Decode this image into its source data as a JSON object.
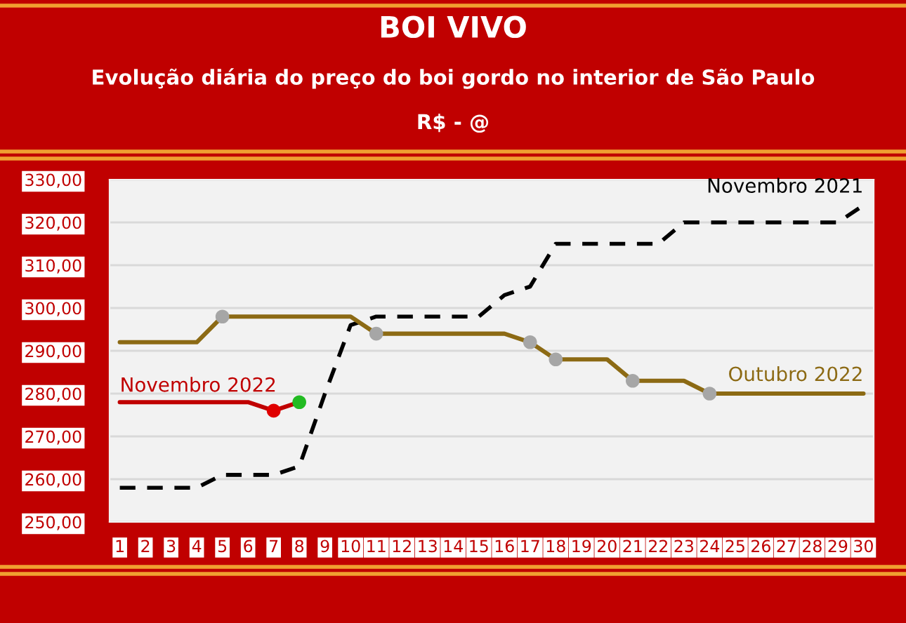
{
  "chart_data": {
    "type": "line",
    "title": "BOI VIVO",
    "subtitle": "Evolução diária do preço do boi gordo no interior de São Paulo",
    "annotations": [
      "R$ - @"
    ],
    "categories": [
      "1",
      "2",
      "3",
      "4",
      "5",
      "6",
      "7",
      "8",
      "9",
      "10",
      "11",
      "12",
      "13",
      "14",
      "15",
      "16",
      "17",
      "18",
      "19",
      "20",
      "21",
      "22",
      "23",
      "24",
      "25",
      "26",
      "27",
      "28",
      "29",
      "30"
    ],
    "series": [
      {
        "name": "Novembro 2021",
        "color": "#000000",
        "line_style": "dashed",
        "values": [
          258,
          258,
          258,
          258,
          261,
          261,
          261,
          263,
          280,
          296,
          298,
          298,
          298,
          298,
          298,
          303,
          305,
          315,
          315,
          315,
          315,
          315,
          320,
          320,
          320,
          320,
          320,
          320,
          320,
          324
        ]
      },
      {
        "name": "Outubro 2022",
        "color": "#8c6a14",
        "line_style": "solid",
        "values": [
          292,
          292,
          292,
          292,
          298,
          298,
          298,
          298,
          298,
          298,
          294,
          294,
          294,
          294,
          294,
          294,
          292,
          288,
          288,
          288,
          283,
          283,
          283,
          280,
          280,
          280,
          280,
          280,
          280,
          280
        ]
      },
      {
        "name": "Novembro 2022",
        "color": "#c00000",
        "line_style": "solid",
        "values": [
          278,
          278,
          278,
          278,
          278,
          278,
          276,
          278,
          null,
          null,
          null,
          null,
          null,
          null,
          null,
          null,
          null,
          null,
          null,
          null,
          null,
          null,
          null,
          null,
          null,
          null,
          null,
          null,
          null,
          null
        ]
      },
      {
        "type": "scatter",
        "x": [
          "5",
          "11",
          "17",
          "18",
          "21",
          "24"
        ],
        "color": "#a6a6a6",
        "values": [
          298,
          294,
          292,
          288,
          283,
          280
        ]
      },
      {
        "type": "scatter",
        "x": [
          "7",
          "8"
        ],
        "colors": [
          "#e00000",
          "#22bb22"
        ],
        "values": [
          276,
          278
        ]
      }
    ],
    "ylim": [
      250,
      330
    ],
    "yticks": [
      {
        "value": 250,
        "label": "250,00"
      },
      {
        "value": 260,
        "label": "260,00"
      },
      {
        "value": 270,
        "label": "270,00"
      },
      {
        "value": 280,
        "label": "280,00"
      },
      {
        "value": 290,
        "label": "290,00"
      },
      {
        "value": 300,
        "label": "300,00"
      },
      {
        "value": 310,
        "label": "310,00"
      },
      {
        "value": 320,
        "label": "320,00"
      },
      {
        "value": 330,
        "label": "330,00"
      }
    ],
    "grid": "y",
    "legend": false
  }
}
